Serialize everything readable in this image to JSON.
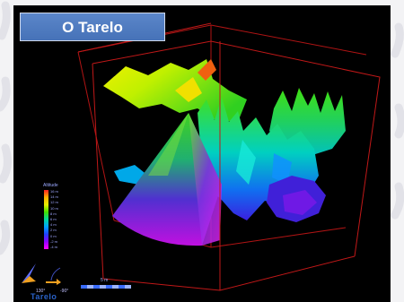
{
  "title": "O Tarelo",
  "legend": {
    "title": "Altitude",
    "labels": [
      "16 m",
      "14 m",
      "12 m",
      "10 m",
      "8 m",
      "6 m",
      "4 m",
      "2 m",
      "0 m",
      "-2 m",
      "-4 m"
    ]
  },
  "compass": {
    "value": "130°"
  },
  "tilt": {
    "value": "-90°"
  },
  "scalebar": {
    "label": "5 m"
  },
  "watermark": "Tarelo",
  "colors": {
    "background": "#000000",
    "badge": "#4f7bc0",
    "bounding_box": "#c01818"
  }
}
